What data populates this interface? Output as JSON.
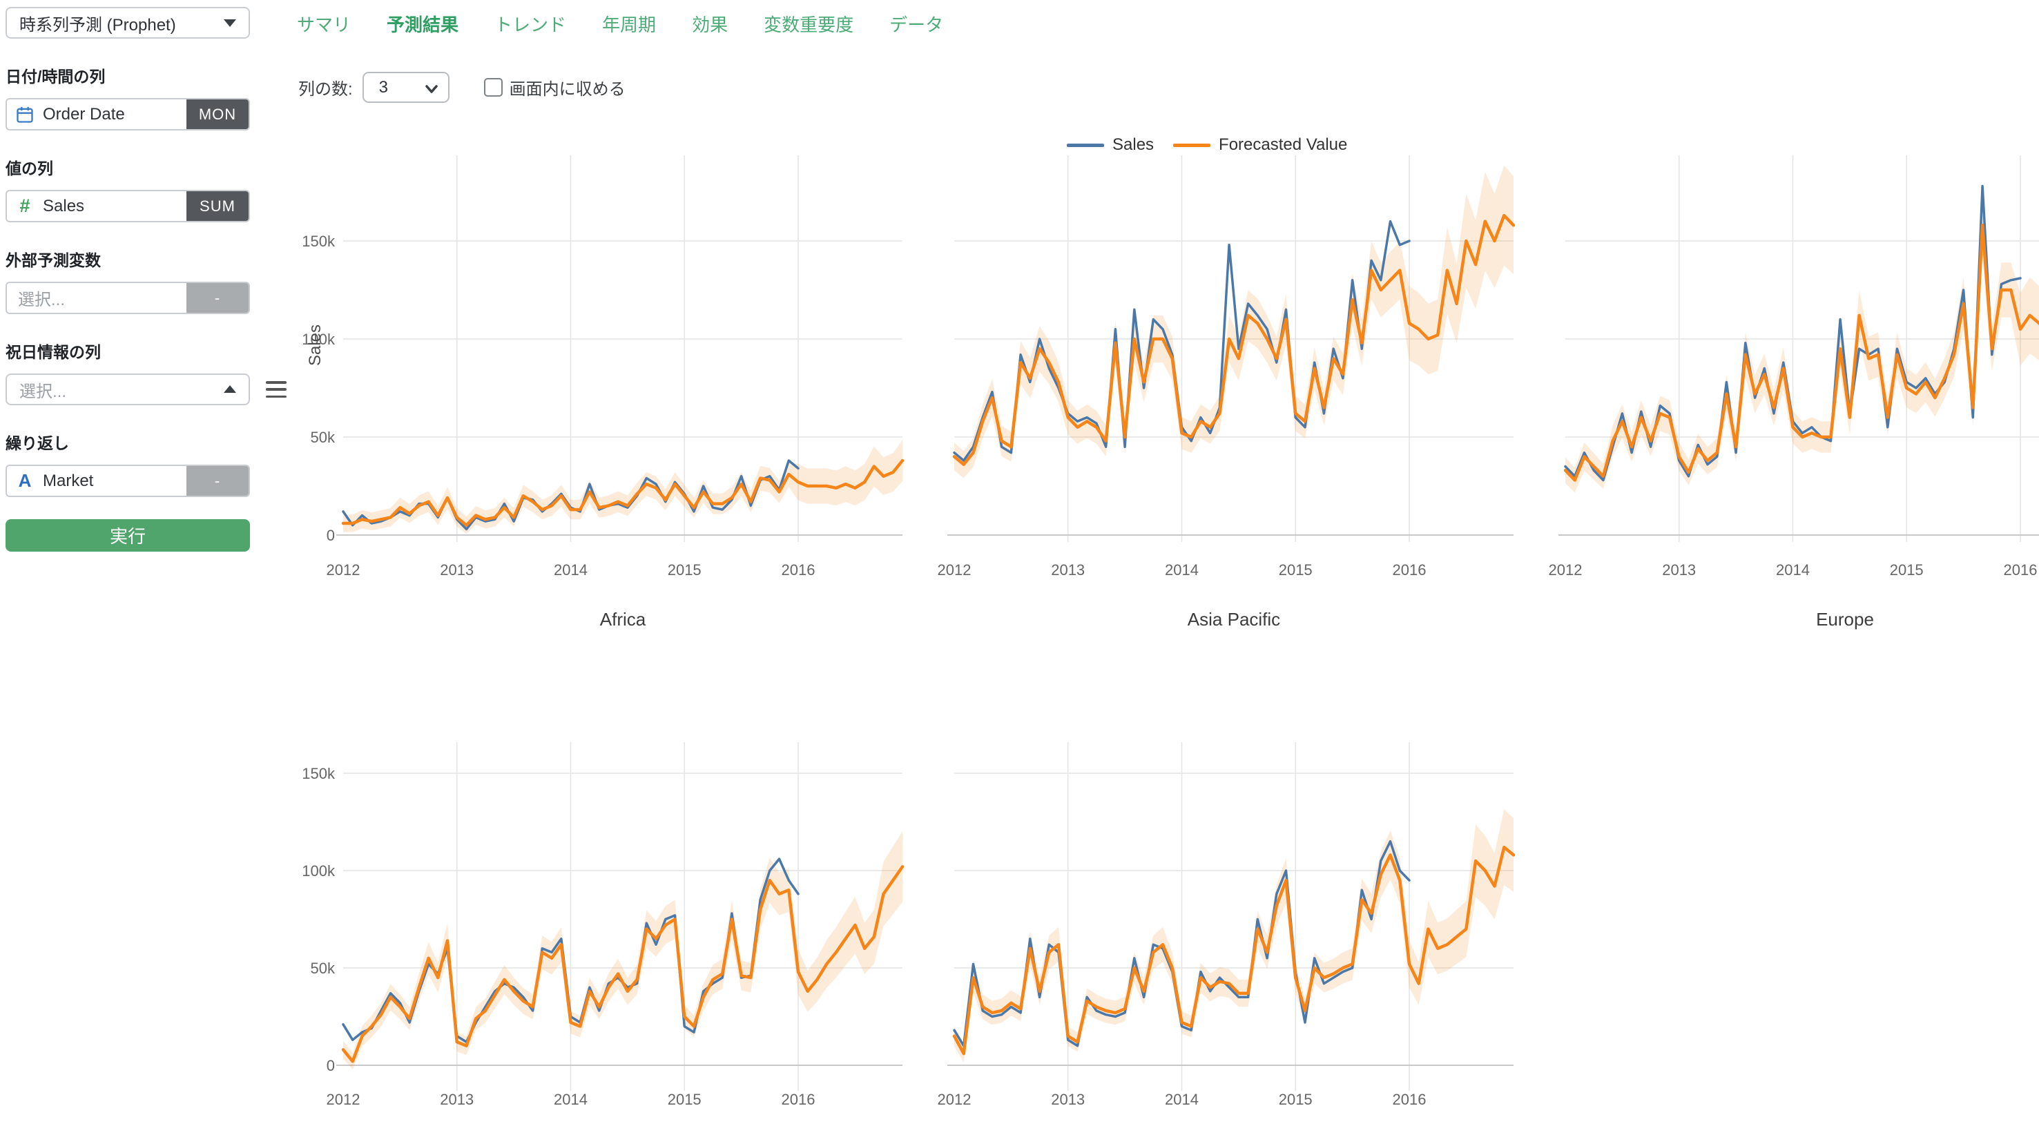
{
  "sidebar": {
    "model_select": {
      "value": "時系列予測 (Prophet)"
    },
    "date_field": {
      "label": "日付/時間の列",
      "value": "Order Date",
      "badge": "MON",
      "icon": "calendar-icon"
    },
    "value_field": {
      "label": "値の列",
      "value": "Sales",
      "badge": "SUM",
      "icon": "number-icon"
    },
    "regressor_field": {
      "label": "外部予測変数",
      "placeholder": "選択...",
      "badge": "-"
    },
    "holiday_field": {
      "label": "祝日情報の列",
      "placeholder": "選択..."
    },
    "repeat_field": {
      "label": "繰り返し",
      "value": "Market",
      "badge": "-",
      "icon": "text-icon"
    },
    "run_button": "実行"
  },
  "tabs": [
    {
      "label": "サマリ",
      "active": false
    },
    {
      "label": "予測結果",
      "active": true
    },
    {
      "label": "トレンド",
      "active": false
    },
    {
      "label": "年周期",
      "active": false
    },
    {
      "label": "効果",
      "active": false
    },
    {
      "label": "変数重要度",
      "active": false
    },
    {
      "label": "データ",
      "active": false
    }
  ],
  "controls": {
    "columns_label": "列の数:",
    "columns_value": "3",
    "fit_label": "画面内に収める",
    "fit_checked": false
  },
  "legend": {
    "items": [
      {
        "label": "Sales",
        "color": "#4C78A8"
      },
      {
        "label": "Forecasted Value",
        "color": "#F58518"
      }
    ]
  },
  "colors": {
    "tab_green": "#4DAB77",
    "tab_active_green": "#2F9E63",
    "button_green": "#50A56C",
    "badge_dark": "#54585C",
    "badge_light": "#A9ACAF",
    "icon_blue": "#3B7CC4",
    "icon_green": "#3FA45B",
    "grid": "#E4E4E4",
    "axis": "#C8C8C8",
    "tick_label": "#666666",
    "title_text": "#3C3C3C"
  },
  "chart_data": {
    "type": "line",
    "facet_by": "Market",
    "ylabel": "Sales",
    "x_ticklabels": [
      "2012",
      "2013",
      "2014",
      "2015",
      "2016"
    ],
    "y_ticklabels": [
      "0",
      "50k",
      "100k",
      "150k"
    ],
    "values_unit": "thousands",
    "x_range": [
      "2012-01",
      "2016-12"
    ],
    "actual_months": 49,
    "forecast_months": 60,
    "legend_entries": [
      "Sales",
      "Forecasted Value"
    ],
    "colors": {
      "sales": "#4C78A8",
      "forecast": "#F58518",
      "band": "#F58518"
    },
    "band": {
      "history_pct": 0.08,
      "history_abs_k": 4,
      "forecast_pct": 0.12,
      "forecast_abs_k": 6,
      "forecast_start_index": 48
    },
    "charts": [
      {
        "title": "Africa",
        "row": 0,
        "col": 0,
        "show_y_labels": true,
        "show_y_title": true,
        "sales_k": [
          12,
          5,
          10,
          6,
          7,
          9,
          12,
          10,
          16,
          16,
          9,
          19,
          8,
          3,
          9,
          7,
          8,
          16,
          7,
          19,
          18,
          12,
          16,
          21,
          14,
          12,
          26,
          13,
          15,
          16,
          14,
          20,
          29,
          26,
          17,
          27,
          21,
          12,
          25,
          14,
          13,
          18,
          30,
          15,
          28,
          30,
          23,
          38,
          34
        ],
        "forecast_k": [
          6,
          6,
          8,
          7,
          8,
          9,
          14,
          11,
          15,
          17,
          10,
          19,
          9,
          5,
          10,
          8,
          9,
          14,
          9,
          20,
          17,
          13,
          15,
          20,
          13,
          13,
          22,
          14,
          15,
          17,
          15,
          21,
          26,
          24,
          18,
          26,
          20,
          14,
          22,
          16,
          16,
          19,
          26,
          17,
          29,
          28,
          22,
          31,
          27,
          25,
          25,
          25,
          24,
          26,
          24,
          27,
          35,
          30,
          32,
          38
        ]
      },
      {
        "title": "Asia Pacific",
        "row": 0,
        "col": 1,
        "show_y_labels": false,
        "show_y_title": false,
        "sales_k": [
          42,
          38,
          45,
          60,
          73,
          45,
          42,
          92,
          78,
          100,
          85,
          75,
          62,
          58,
          60,
          57,
          45,
          105,
          45,
          115,
          75,
          110,
          105,
          92,
          55,
          48,
          60,
          52,
          65,
          148,
          95,
          118,
          112,
          105,
          88,
          115,
          60,
          55,
          88,
          62,
          95,
          80,
          130,
          95,
          140,
          130,
          160,
          148,
          150
        ],
        "forecast_k": [
          40,
          36,
          42,
          58,
          70,
          48,
          45,
          88,
          80,
          95,
          88,
          78,
          60,
          55,
          58,
          55,
          48,
          98,
          50,
          100,
          78,
          100,
          100,
          90,
          52,
          50,
          58,
          55,
          62,
          100,
          90,
          112,
          108,
          100,
          90,
          110,
          62,
          58,
          85,
          65,
          90,
          82,
          120,
          98,
          135,
          125,
          130,
          135,
          108,
          105,
          100,
          102,
          135,
          118,
          150,
          138,
          160,
          150,
          163,
          158
        ]
      },
      {
        "title": "Europe",
        "row": 0,
        "col": 2,
        "show_y_labels": false,
        "show_y_title": false,
        "sales_k": [
          35,
          30,
          42,
          33,
          28,
          45,
          62,
          42,
          63,
          45,
          66,
          62,
          38,
          30,
          46,
          36,
          40,
          78,
          42,
          98,
          70,
          85,
          62,
          88,
          58,
          52,
          55,
          50,
          48,
          110,
          62,
          95,
          92,
          95,
          55,
          95,
          78,
          75,
          80,
          72,
          78,
          95,
          125,
          60,
          178,
          92,
          128,
          130,
          131
        ],
        "forecast_k": [
          33,
          28,
          40,
          35,
          30,
          48,
          58,
          45,
          60,
          48,
          62,
          60,
          40,
          32,
          44,
          38,
          42,
          72,
          45,
          92,
          72,
          82,
          65,
          85,
          55,
          50,
          52,
          50,
          50,
          95,
          60,
          112,
          90,
          92,
          60,
          92,
          75,
          72,
          78,
          70,
          80,
          92,
          118,
          65,
          158,
          95,
          125,
          125,
          105,
          112,
          108,
          102,
          118,
          112,
          100,
          140,
          125,
          150,
          140,
          152
        ]
      },
      {
        "title": "",
        "row": 1,
        "col": 0,
        "show_y_labels": true,
        "show_y_title": false,
        "sales_k": [
          21,
          13,
          17,
          19,
          28,
          37,
          32,
          22,
          38,
          52,
          47,
          60,
          15,
          12,
          22,
          30,
          38,
          42,
          40,
          35,
          28,
          60,
          58,
          65,
          25,
          22,
          40,
          28,
          42,
          45,
          40,
          42,
          73,
          62,
          75,
          77,
          20,
          17,
          38,
          42,
          45,
          78,
          45,
          46,
          85,
          100,
          106,
          95,
          88
        ],
        "forecast_k": [
          8,
          2,
          15,
          20,
          26,
          35,
          30,
          24,
          40,
          55,
          45,
          64,
          12,
          10,
          24,
          28,
          36,
          44,
          38,
          33,
          30,
          58,
          55,
          62,
          22,
          20,
          38,
          30,
          40,
          47,
          38,
          44,
          70,
          65,
          72,
          75,
          25,
          20,
          35,
          44,
          47,
          75,
          46,
          45,
          80,
          95,
          88,
          90,
          48,
          38,
          44,
          52,
          58,
          65,
          72,
          60,
          66,
          88,
          95,
          102
        ]
      },
      {
        "title": "",
        "row": 1,
        "col": 1,
        "show_y_labels": false,
        "show_y_title": false,
        "sales_k": [
          18,
          10,
          52,
          28,
          25,
          26,
          30,
          27,
          65,
          35,
          62,
          58,
          13,
          10,
          35,
          28,
          26,
          25,
          27,
          55,
          35,
          62,
          60,
          48,
          20,
          18,
          48,
          38,
          45,
          40,
          35,
          35,
          75,
          55,
          88,
          100,
          48,
          22,
          55,
          42,
          45,
          48,
          50,
          90,
          75,
          105,
          115,
          100,
          95
        ],
        "forecast_k": [
          15,
          6,
          45,
          30,
          27,
          28,
          32,
          29,
          60,
          38,
          58,
          62,
          15,
          12,
          33,
          30,
          28,
          27,
          29,
          50,
          38,
          58,
          62,
          50,
          22,
          20,
          45,
          40,
          43,
          42,
          37,
          37,
          70,
          58,
          82,
          95,
          45,
          28,
          50,
          45,
          47,
          50,
          52,
          85,
          78,
          98,
          108,
          95,
          52,
          42,
          70,
          60,
          62,
          66,
          70,
          105,
          100,
          92,
          112,
          108
        ]
      }
    ]
  }
}
